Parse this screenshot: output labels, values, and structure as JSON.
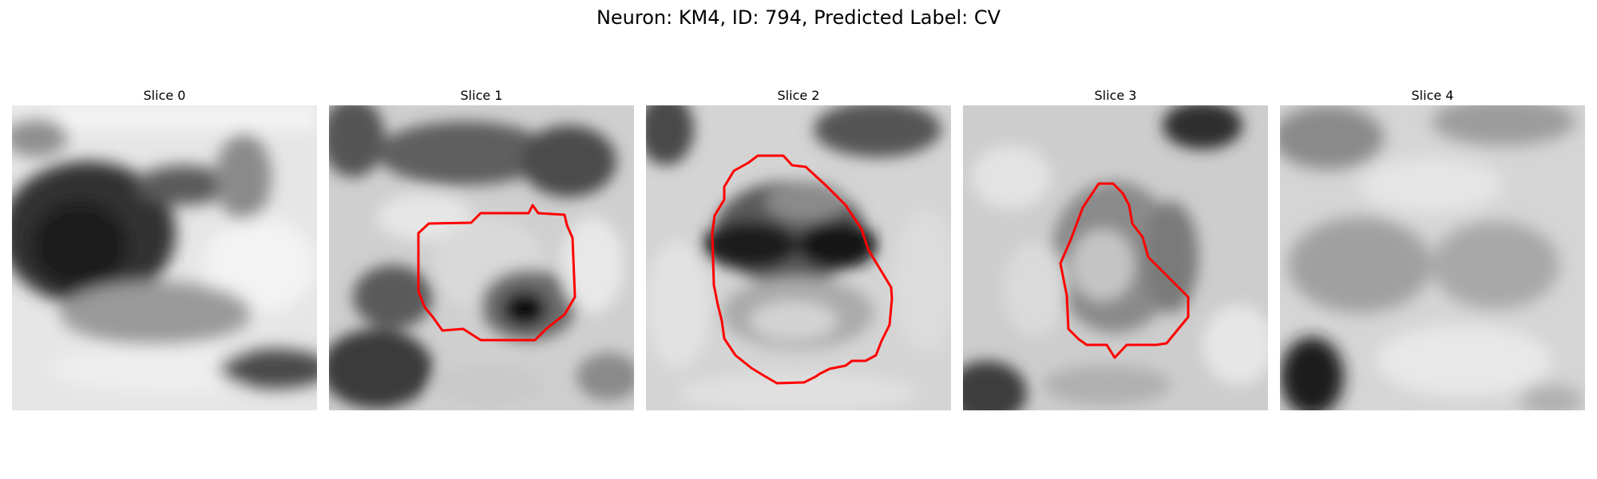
{
  "figure": {
    "title": "Neuron: KM4, ID: 794, Predicted Label: CV"
  },
  "panels": [
    {
      "title": "Slice 0",
      "has_contour": false
    },
    {
      "title": "Slice 1",
      "has_contour": true
    },
    {
      "title": "Slice 2",
      "has_contour": true
    },
    {
      "title": "Slice 3",
      "has_contour": true
    },
    {
      "title": "Slice 4",
      "has_contour": false
    }
  ],
  "colors": {
    "contour": "#ff0000",
    "background": "#ffffff"
  }
}
